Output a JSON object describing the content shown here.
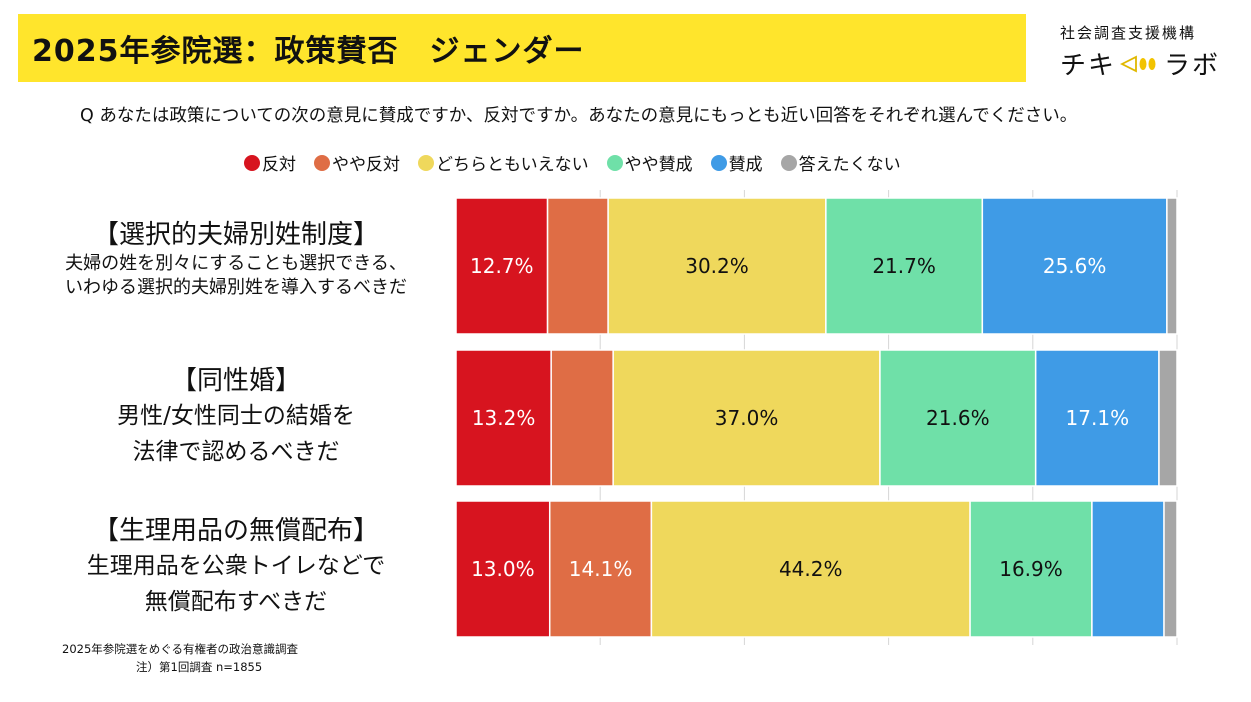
{
  "header": {
    "title": "2025年参院選：政策賛否　ジェンダー",
    "org_name": "社会調査支援機構",
    "org_brand_left": "チキ",
    "org_brand_right": "ラボ"
  },
  "question": "Q あなたは政策についての次の意見に賛成ですか、反対ですか。あなたの意見にもっとも近い回答をそれぞれ選んでください。",
  "rows": [
    {
      "title": "【選択的夫婦別姓制度】",
      "desc1": "夫婦の姓を別々にすることも選択できる、",
      "desc2": "いわゆる選択的夫婦別姓を導入するべきだ"
    },
    {
      "title": "【同性婚】",
      "desc1": "男性/女性同士の結婚を",
      "desc2": "法律で認めるべきだ"
    },
    {
      "title": "【生理用品の無償配布】",
      "desc1": "生理用品を公衆トイレなどで",
      "desc2": "無償配布すべきだ"
    }
  ],
  "footnote": {
    "line1": "2025年参院選をめぐる有権者の政治意識調査",
    "line2": "注）第1回調査 n=1855"
  },
  "chart_data": {
    "type": "bar",
    "orientation": "horizontal",
    "stacked": true,
    "normalized_percent": true,
    "categories": [
      "【選択的夫婦別姓制度】",
      "【同性婚】",
      "【生理用品の無償配布】"
    ],
    "series": [
      {
        "name": "反対",
        "color": "#d7141f",
        "values": [
          12.7,
          13.2,
          13.0
        ],
        "labels": [
          "12.7%",
          "13.2%",
          "13.0%"
        ]
      },
      {
        "name": "やや反対",
        "color": "#df6d45",
        "values": [
          8.4,
          8.6,
          14.1
        ],
        "labels": [
          "",
          "",
          "14.1%"
        ]
      },
      {
        "name": "どちらともいえない",
        "color": "#efd85c",
        "values": [
          30.2,
          37.0,
          44.2
        ],
        "labels": [
          "30.2%",
          "37.0%",
          "44.2%"
        ]
      },
      {
        "name": "やや賛成",
        "color": "#6fe0a8",
        "values": [
          21.7,
          21.6,
          16.9
        ],
        "labels": [
          "21.7%",
          "21.6%",
          "16.9%"
        ]
      },
      {
        "name": "賛成",
        "color": "#3f9be6",
        "values": [
          25.6,
          17.1,
          10.0
        ],
        "labels": [
          "25.6%",
          "17.1%",
          ""
        ]
      },
      {
        "name": "答えたくない",
        "color": "#a6a6a6",
        "values": [
          1.4,
          2.5,
          1.8
        ],
        "labels": [
          "",
          "",
          ""
        ]
      }
    ],
    "legend_position": "top"
  }
}
